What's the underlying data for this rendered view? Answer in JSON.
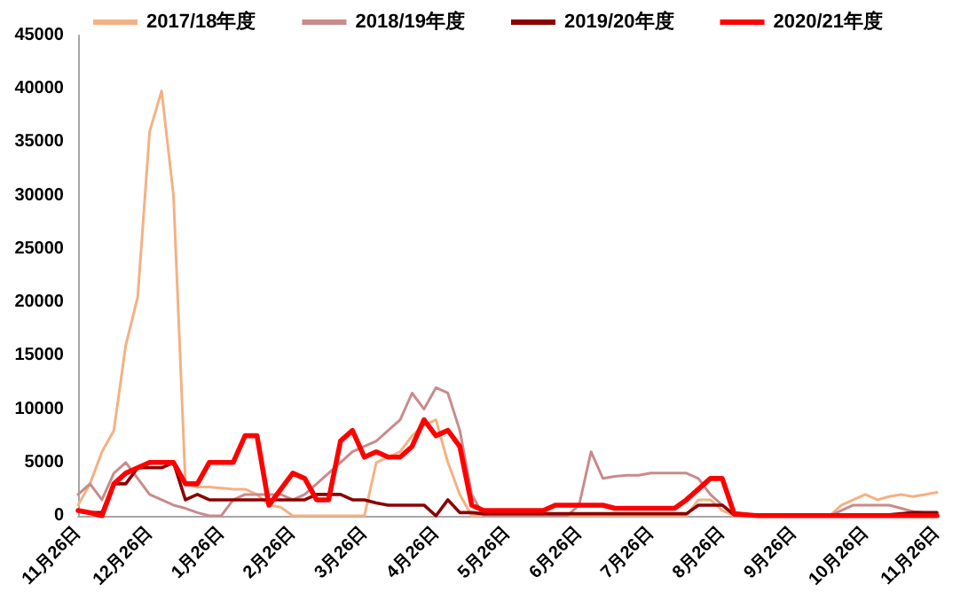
{
  "chart_data": {
    "type": "line",
    "legend": "top",
    "grid": false,
    "marker": "none",
    "line_style": "solid",
    "categories": [
      "11月26日",
      null,
      null,
      null,
      null,
      null,
      "12月26日",
      null,
      null,
      null,
      null,
      null,
      "1月26日",
      null,
      null,
      null,
      null,
      null,
      "2月26日",
      null,
      null,
      null,
      null,
      null,
      "3月26日",
      null,
      null,
      null,
      null,
      null,
      "4月26日",
      null,
      null,
      null,
      null,
      null,
      "5月26日",
      null,
      null,
      null,
      null,
      null,
      "6月26日",
      null,
      null,
      null,
      null,
      null,
      "7月26日",
      null,
      null,
      null,
      null,
      null,
      "8月26日",
      null,
      null,
      null,
      null,
      null,
      "9月26日",
      null,
      null,
      null,
      null,
      null,
      "10月26日",
      null,
      null,
      null,
      null,
      null,
      "11月26日"
    ],
    "ylim": [
      0,
      45000
    ],
    "yticks": [
      0,
      5000,
      10000,
      15000,
      20000,
      25000,
      30000,
      35000,
      40000,
      45000
    ],
    "series": [
      {
        "name": "2017/18年度",
        "color": "#f4b183",
        "values": [
          1000,
          3000,
          6000,
          8000,
          16000,
          20500,
          36000,
          39800,
          30000,
          3000,
          2700,
          2700,
          2600,
          2500,
          2500,
          2000,
          1000,
          800,
          0,
          0,
          0,
          0,
          0,
          0,
          0,
          5000,
          5500,
          6000,
          7500,
          8500,
          9000,
          5000,
          2000,
          0,
          0,
          0,
          0,
          0,
          0,
          0,
          0,
          0,
          0,
          0,
          0,
          0,
          0,
          0,
          0,
          0,
          0,
          0,
          1500,
          1500,
          500,
          0,
          0,
          0,
          0,
          0,
          0,
          0,
          0,
          0,
          1000,
          1500,
          2000,
          1500,
          1800,
          2000,
          1800,
          2000,
          2200
        ]
      },
      {
        "name": "2018/19年度",
        "color": "#c98b8b",
        "values": [
          2000,
          3000,
          1500,
          4000,
          5000,
          3500,
          2000,
          1500,
          1000,
          700,
          300,
          0,
          0,
          1500,
          2000,
          2000,
          2000,
          2000,
          1500,
          2000,
          3000,
          4000,
          5000,
          6000,
          6500,
          7000,
          8000,
          9000,
          11500,
          10000,
          12000,
          11500,
          8000,
          2000,
          0,
          0,
          0,
          0,
          0,
          0,
          0,
          0,
          1000,
          6000,
          3500,
          3700,
          3800,
          3800,
          4000,
          4000,
          4000,
          4000,
          3500,
          2000,
          1000,
          0,
          0,
          0,
          0,
          0,
          0,
          0,
          0,
          0,
          500,
          1000,
          1000,
          1000,
          1000,
          700,
          400,
          300,
          300
        ]
      },
      {
        "name": "2019/20年度",
        "color": "#8b0000",
        "values": [
          500,
          300,
          300,
          3000,
          3000,
          4500,
          4500,
          4500,
          5000,
          1500,
          2000,
          1500,
          1500,
          1500,
          1500,
          1500,
          1500,
          1500,
          1500,
          1500,
          2000,
          2000,
          2000,
          1500,
          1500,
          1200,
          1000,
          1000,
          1000,
          1000,
          0,
          1500,
          300,
          300,
          200,
          200,
          200,
          200,
          200,
          200,
          200,
          200,
          200,
          200,
          200,
          200,
          200,
          200,
          200,
          200,
          200,
          200,
          1000,
          1000,
          1000,
          100,
          100,
          100,
          100,
          100,
          100,
          100,
          100,
          100,
          100,
          100,
          100,
          100,
          100,
          200,
          300,
          300,
          300
        ]
      },
      {
        "name": "2020/21年度",
        "color": "#ff0000",
        "values": [
          500,
          300,
          0,
          3000,
          4000,
          4500,
          5000,
          5000,
          5000,
          3000,
          3000,
          5000,
          5000,
          5000,
          7500,
          7500,
          1000,
          2500,
          4000,
          3500,
          1500,
          1500,
          7000,
          8000,
          5500,
          6000,
          5500,
          5500,
          6500,
          9000,
          7500,
          8000,
          6500,
          1000,
          500,
          500,
          500,
          500,
          500,
          500,
          1000,
          1000,
          1000,
          1000,
          1000,
          700,
          700,
          700,
          700,
          700,
          700,
          1500,
          2500,
          3500,
          3500,
          200,
          100,
          0,
          0,
          0,
          0,
          0,
          0,
          0,
          0,
          0,
          0,
          0,
          0,
          0,
          0,
          0,
          0
        ]
      }
    ]
  }
}
